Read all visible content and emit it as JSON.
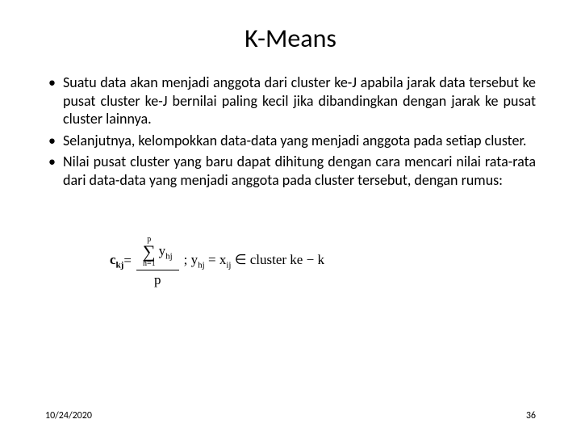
{
  "slide": {
    "title": "K-Means",
    "title_fontsize": 32,
    "bullets": [
      "Suatu data akan menjadi anggota dari cluster ke-J apabila jarak data tersebut ke pusat cluster ke-J bernilai paling kecil jika dibandingkan dengan jarak ke pusat cluster lainnya.",
      "Selanjutnya, kelompokkan data-data yang menjadi anggota pada setiap cluster.",
      "Nilai pusat cluster yang baru dapat dihitung dengan cara mencari nilai rata-rata dari data-data yang menjadi anggota pada cluster tersebut, dengan rumus:"
    ],
    "bullet_fontsize": 18,
    "bullet_alignment": "justify",
    "formula": {
      "lhs_main": "c",
      "lhs_sub": "kj",
      "equals": " = ",
      "sum_upper": "p",
      "sum_lower": "h=1",
      "sum_term_main": "y",
      "sum_term_sub": "hj",
      "denom": "p",
      "sep": " ; ",
      "y_main": "y",
      "y_sub": "hj",
      "eq2": " = ",
      "x_main": "x",
      "x_sub": "ij",
      "member": " ∈ cluster ke − k"
    },
    "footer_date": "10/24/2020",
    "page_number": "36",
    "background_color": "#ffffff",
    "text_color": "#000000"
  }
}
